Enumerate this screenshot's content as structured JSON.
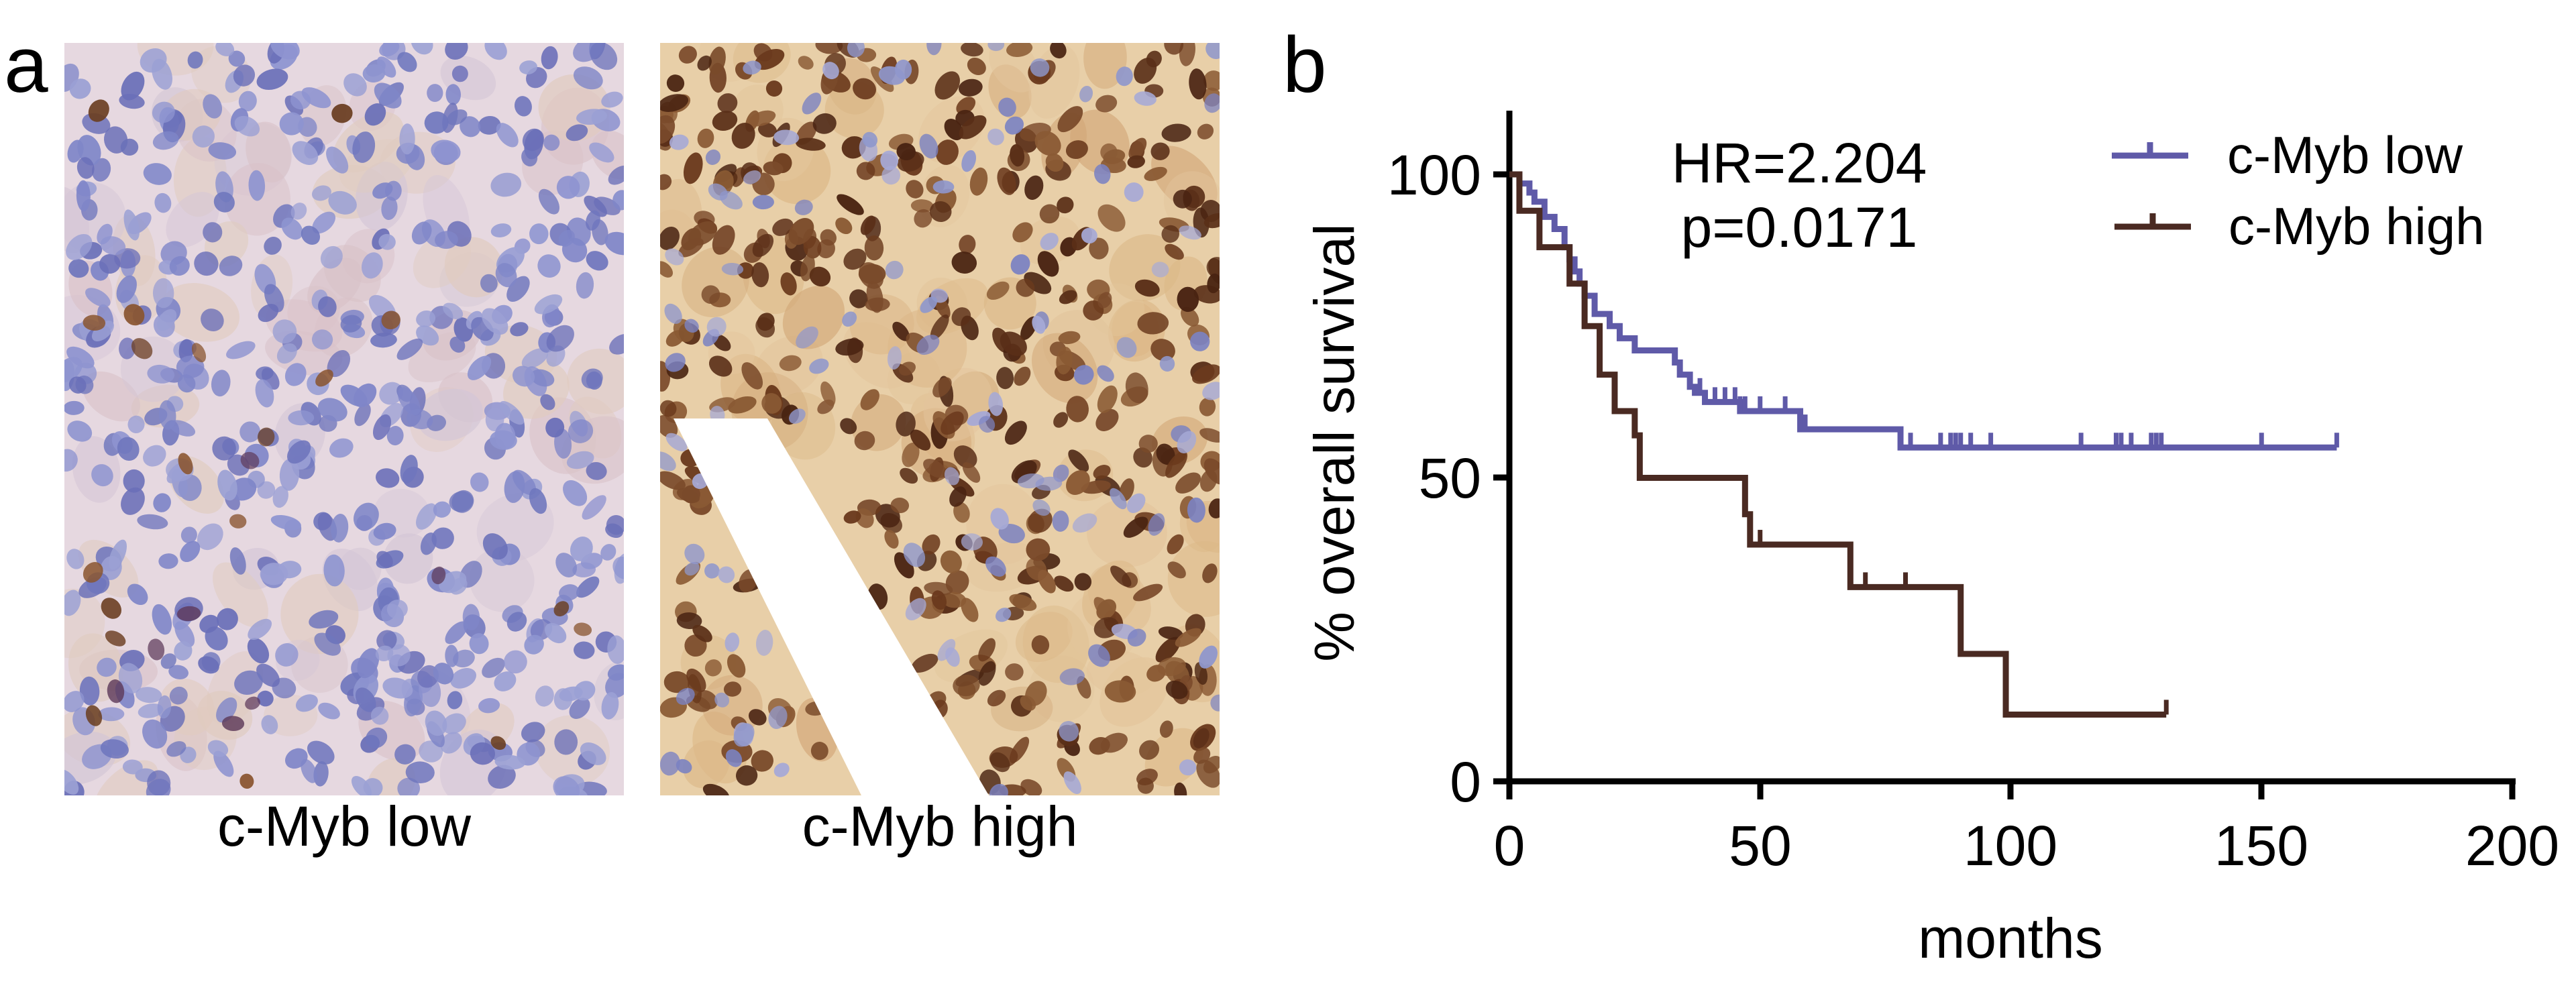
{
  "panel_a": {
    "letter": "a",
    "images": [
      {
        "label": "c-Myb low",
        "stain": "hematoxylin-dominant, sparse brown nuclei",
        "background": "#e6d8e0",
        "nucleus_color": "#7f86c8",
        "positive_color": "#6b3f22"
      },
      {
        "label": "c-Myb high",
        "stain": "strong brown nuclear DAB staining",
        "background": "#e8cfa8",
        "nucleus_color": "#5a2f18",
        "negative_color": "#8f97cc"
      }
    ]
  },
  "panel_b": {
    "letter": "b",
    "stats": {
      "hr": "HR=2.204",
      "p": "p=0.0171"
    },
    "legend": [
      {
        "label": "c-Myb low",
        "color": "#5f5aa8"
      },
      {
        "label": "c-Myb high",
        "color": "#4a2a22"
      }
    ],
    "xlabel": "months",
    "ylabel": "% overall survival",
    "xticks": [
      "0",
      "50",
      "100",
      "150",
      "200"
    ],
    "yticks": [
      "0",
      "50",
      "100"
    ]
  },
  "chart_data": {
    "type": "line",
    "subtype": "kaplan-meier step curve",
    "title": "",
    "xlabel": "months",
    "ylabel": "% overall survival",
    "xlim": [
      0,
      200
    ],
    "ylim": [
      0,
      100
    ],
    "annotations": [
      "HR=2.204",
      "p=0.0171"
    ],
    "legend_position": "upper right",
    "grid": false,
    "axis_calibration_note": "Axis pixel positions estimated from the overview image; step coordinates are approximate.",
    "series": [
      {
        "name": "c-Myb low",
        "color": "#5f5aa8",
        "steps": [
          [
            0,
            100
          ],
          [
            1,
            100
          ],
          [
            2,
            98.5
          ],
          [
            4,
            97
          ],
          [
            5,
            95.5
          ],
          [
            7,
            93
          ],
          [
            9,
            91
          ],
          [
            11,
            88
          ],
          [
            12,
            86
          ],
          [
            13,
            84
          ],
          [
            14,
            82
          ],
          [
            15,
            80
          ],
          [
            17,
            77
          ],
          [
            19,
            77
          ],
          [
            20,
            75
          ],
          [
            22,
            73
          ],
          [
            24,
            73
          ],
          [
            25,
            71
          ],
          [
            31,
            71
          ],
          [
            33,
            69
          ],
          [
            34,
            67
          ],
          [
            36,
            65
          ],
          [
            37,
            64
          ],
          [
            39,
            62.5
          ],
          [
            45,
            62.5
          ],
          [
            46,
            61
          ],
          [
            57,
            61
          ],
          [
            58,
            58
          ],
          [
            77,
            58
          ],
          [
            78,
            55
          ],
          [
            165,
            55
          ]
        ],
        "censored": [
          38,
          41,
          43,
          45,
          46,
          47,
          50,
          55,
          58,
          59,
          80,
          86,
          88,
          89,
          90,
          92,
          96,
          114,
          121,
          122,
          124,
          128,
          129,
          130,
          150,
          165
        ]
      },
      {
        "name": "c-Myb high",
        "color": "#4a2a22",
        "steps": [
          [
            0,
            100
          ],
          [
            1,
            100
          ],
          [
            2,
            94
          ],
          [
            5,
            94
          ],
          [
            6,
            88
          ],
          [
            11,
            88
          ],
          [
            12,
            82
          ],
          [
            14,
            82
          ],
          [
            15,
            75
          ],
          [
            17,
            75
          ],
          [
            18,
            67
          ],
          [
            20,
            67
          ],
          [
            21,
            61
          ],
          [
            24,
            61
          ],
          [
            25,
            57
          ],
          [
            26,
            50
          ],
          [
            46,
            50
          ],
          [
            47,
            44
          ],
          [
            48,
            39
          ],
          [
            67,
            39
          ],
          [
            68,
            32
          ],
          [
            89,
            32
          ],
          [
            90,
            21
          ],
          [
            98,
            21
          ],
          [
            99,
            11
          ],
          [
            131,
            11
          ]
        ],
        "censored": [
          50,
          71,
          79,
          131
        ]
      }
    ]
  }
}
